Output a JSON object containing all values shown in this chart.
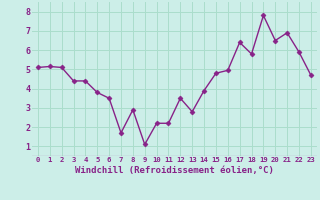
{
  "x": [
    0,
    1,
    2,
    3,
    4,
    5,
    6,
    7,
    8,
    9,
    10,
    11,
    12,
    13,
    14,
    15,
    16,
    17,
    18,
    19,
    20,
    21,
    22,
    23
  ],
  "y": [
    5.1,
    5.15,
    5.1,
    4.4,
    4.4,
    3.8,
    3.5,
    1.7,
    2.9,
    1.1,
    2.2,
    2.2,
    3.5,
    2.8,
    3.9,
    4.8,
    4.95,
    6.4,
    5.8,
    7.8,
    6.5,
    6.9,
    5.9,
    4.7
  ],
  "line_color": "#882288",
  "marker": "D",
  "marker_size": 2.5,
  "bg_color": "#cceee8",
  "grid_color": "#aaddcc",
  "xlabel": "Windchill (Refroidissement éolien,°C)",
  "xlabel_color": "#882288",
  "ylabel_ticks": [
    1,
    2,
    3,
    4,
    5,
    6,
    7,
    8
  ],
  "xtick_labels": [
    "0",
    "1",
    "2",
    "3",
    "4",
    "5",
    "6",
    "7",
    "8",
    "9",
    "10",
    "11",
    "12",
    "13",
    "14",
    "15",
    "16",
    "17",
    "18",
    "19",
    "20",
    "21",
    "22",
    "23"
  ],
  "ylim": [
    0.5,
    8.5
  ],
  "xlim": [
    -0.5,
    23.5
  ],
  "ytick_fontsize": 6,
  "xtick_fontsize": 5.2,
  "xlabel_fontsize": 6.5,
  "linewidth": 1.0
}
